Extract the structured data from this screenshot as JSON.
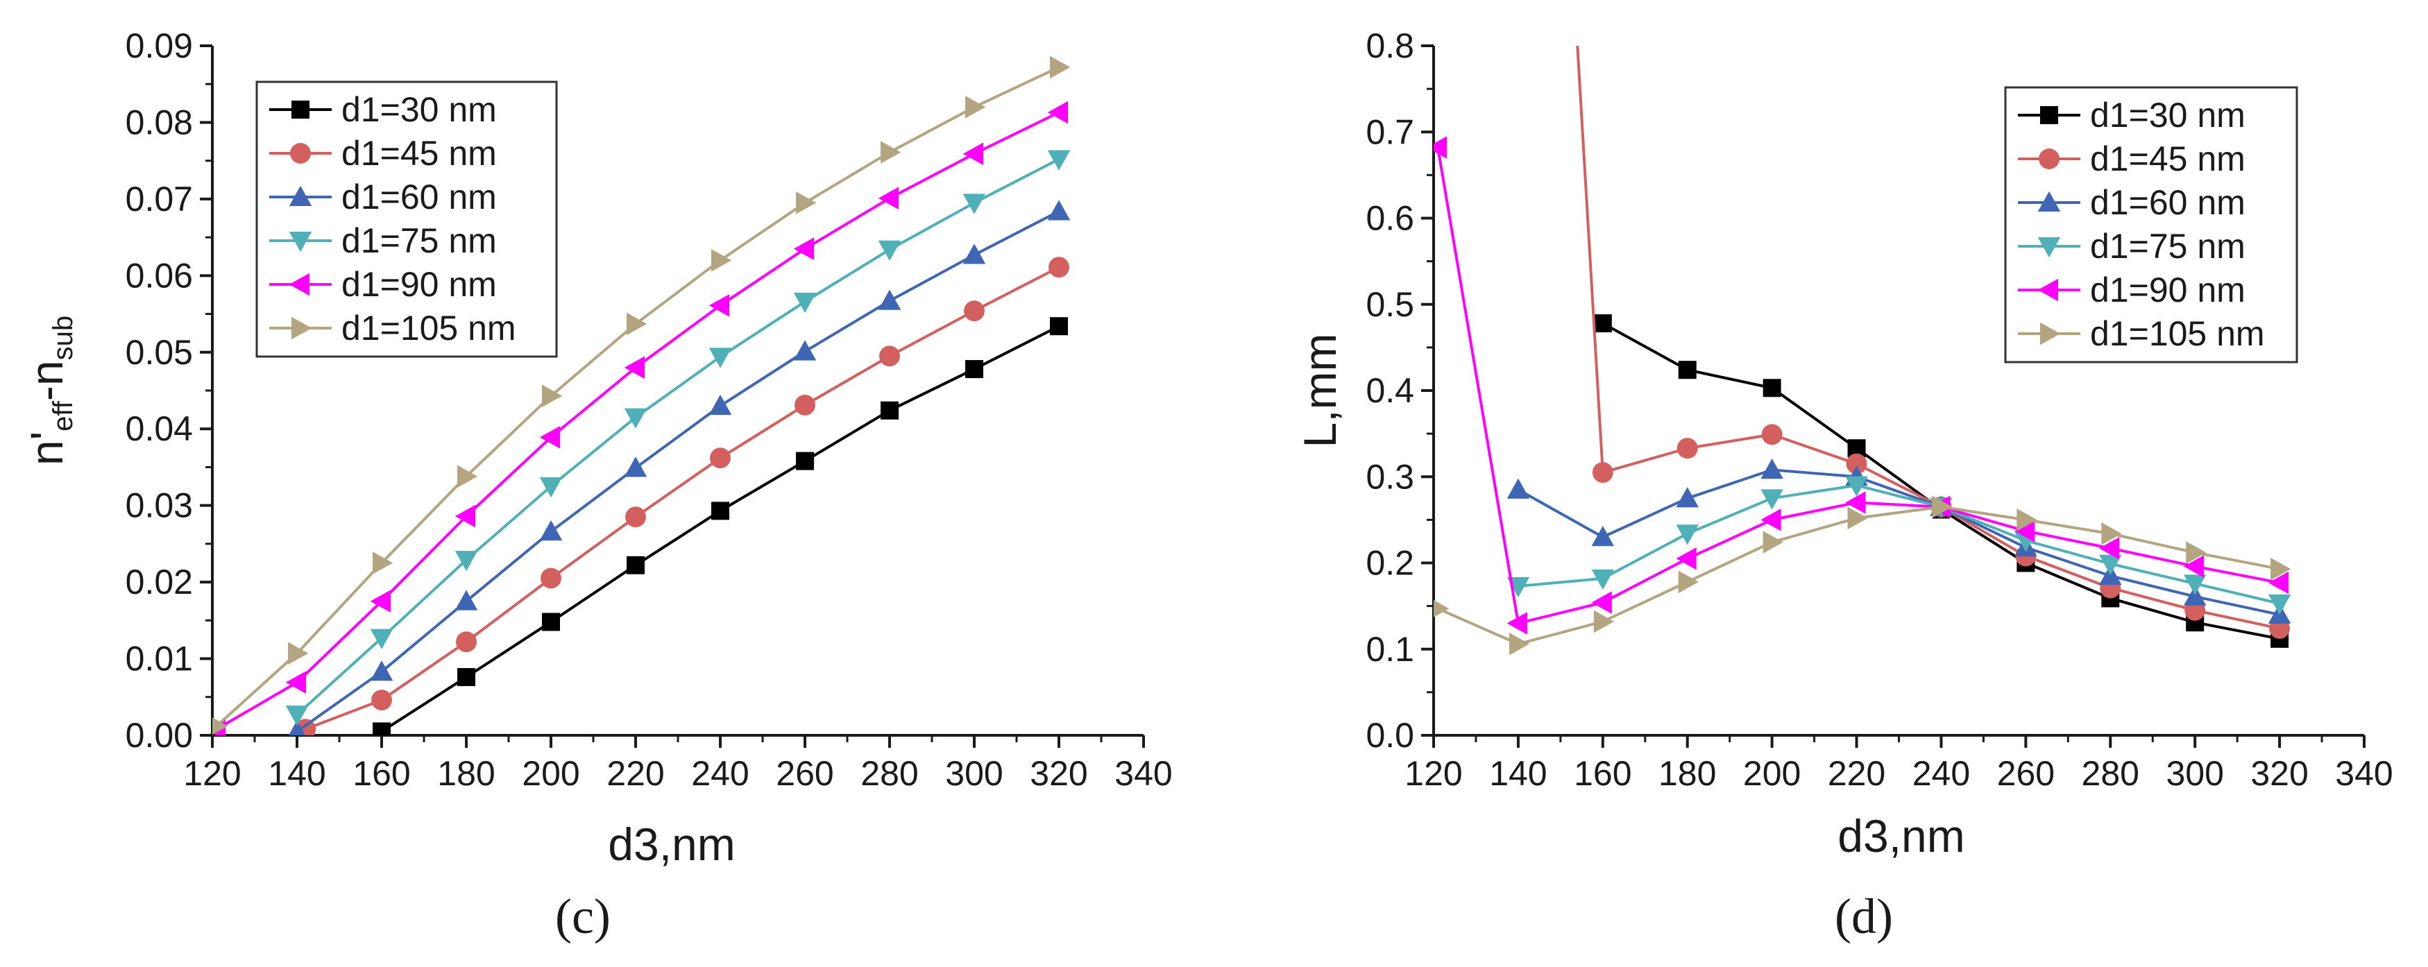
{
  "chart_data": [
    {
      "type": "line",
      "panel_label": "(c)",
      "ylabel_parts": [
        "n'",
        "eff",
        "-n",
        "sub"
      ],
      "xlabel": "d3,nm",
      "xlim": [
        120,
        340
      ],
      "ylim": [
        0,
        0.09
      ],
      "xticks": [
        "120",
        "140",
        "160",
        "180",
        "200",
        "220",
        "240",
        "260",
        "280",
        "300",
        "320",
        "340"
      ],
      "yticks": [
        "0.00",
        "0.01",
        "0.02",
        "0.03",
        "0.04",
        "0.05",
        "0.06",
        "0.07",
        "0.08",
        "0.09"
      ],
      "legend_position": "top-left",
      "series": [
        {
          "name": "d1=30 nm",
          "color": "#000000",
          "marker": "square",
          "x": [
            160,
            180,
            200,
            220,
            240,
            260,
            280,
            300,
            320
          ],
          "y": [
            0.0005,
            0.0076,
            0.0148,
            0.0222,
            0.0293,
            0.0358,
            0.0424,
            0.0478,
            0.0534
          ]
        },
        {
          "name": "d1=45 nm",
          "color": "#d45f5f",
          "marker": "circle",
          "x": [
            142,
            160,
            180,
            200,
            220,
            240,
            260,
            280,
            300,
            320
          ],
          "y": [
            0.0008,
            0.0046,
            0.0122,
            0.0205,
            0.0285,
            0.0362,
            0.0431,
            0.0495,
            0.0554,
            0.0611
          ]
        },
        {
          "name": "d1=60 nm",
          "color": "#3f66b5",
          "marker": "triangle-up",
          "x": [
            140,
            160,
            180,
            200,
            220,
            240,
            260,
            280,
            300,
            320
          ],
          "y": [
            0.0005,
            0.0083,
            0.0175,
            0.0266,
            0.0349,
            0.043,
            0.0501,
            0.0567,
            0.0627,
            0.0684
          ]
        },
        {
          "name": "d1=75 nm",
          "color": "#4fb0b8",
          "marker": "triangle-down",
          "x": [
            140,
            160,
            180,
            200,
            220,
            240,
            260,
            280,
            300,
            320
          ],
          "y": [
            0.0027,
            0.0127,
            0.0229,
            0.0325,
            0.0415,
            0.0494,
            0.0566,
            0.0634,
            0.0695,
            0.0752
          ]
        },
        {
          "name": "d1=90 nm",
          "color": "#ff00ff",
          "marker": "triangle-left",
          "x": [
            121,
            140,
            160,
            180,
            200,
            220,
            240,
            260,
            280,
            300,
            320
          ],
          "y": [
            0.0008,
            0.0069,
            0.0175,
            0.0286,
            0.0389,
            0.048,
            0.0561,
            0.0635,
            0.0701,
            0.0759,
            0.0813
          ]
        },
        {
          "name": "d1=105 nm",
          "color": "#b3a580",
          "marker": "triangle-right",
          "x": [
            121,
            140,
            160,
            180,
            200,
            220,
            240,
            260,
            280,
            300,
            320
          ],
          "y": [
            0.0012,
            0.0107,
            0.0225,
            0.0338,
            0.0443,
            0.0537,
            0.062,
            0.0695,
            0.0761,
            0.082,
            0.0872
          ]
        }
      ]
    },
    {
      "type": "line",
      "panel_label": "(d)",
      "ylabel": "L,mm",
      "xlabel": "d3,nm",
      "xlim": [
        120,
        340
      ],
      "ylim": [
        0,
        0.8
      ],
      "xticks": [
        "120",
        "140",
        "160",
        "180",
        "200",
        "220",
        "240",
        "260",
        "280",
        "300",
        "320",
        "340"
      ],
      "yticks": [
        "0.0",
        "0.1",
        "0.2",
        "0.3",
        "0.4",
        "0.5",
        "0.6",
        "0.7",
        "0.8"
      ],
      "legend_position": "top-right",
      "series": [
        {
          "name": "d1=30 nm",
          "color": "#000000",
          "marker": "square",
          "x": [
            160,
            180,
            200,
            220,
            240,
            260,
            280,
            300,
            320
          ],
          "y": [
            0.478,
            0.424,
            0.403,
            0.333,
            0.262,
            0.2,
            0.159,
            0.131,
            0.112
          ]
        },
        {
          "name": "d1=45 nm",
          "color": "#d45f5f",
          "marker": "circle",
          "x": [
            154,
            160,
            180,
            200,
            220,
            240,
            260,
            280,
            300,
            320
          ],
          "y": [
            0.8,
            0.305,
            0.333,
            0.349,
            0.315,
            0.265,
            0.208,
            0.171,
            0.145,
            0.124
          ],
          "unmarked_points": [
            0
          ]
        },
        {
          "name": "d1=60 nm",
          "color": "#3f66b5",
          "marker": "triangle-up",
          "x": [
            140,
            160,
            180,
            200,
            220,
            240,
            260,
            280,
            300,
            320
          ],
          "y": [
            0.285,
            0.23,
            0.275,
            0.308,
            0.3,
            0.265,
            0.218,
            0.185,
            0.161,
            0.14
          ]
        },
        {
          "name": "d1=75 nm",
          "color": "#4fb0b8",
          "marker": "triangle-down",
          "x": [
            140,
            160,
            180,
            200,
            220,
            240,
            260,
            280,
            300,
            320
          ],
          "y": [
            0.173,
            0.182,
            0.234,
            0.275,
            0.29,
            0.265,
            0.226,
            0.199,
            0.176,
            0.153
          ]
        },
        {
          "name": "d1=90 nm",
          "color": "#ff00ff",
          "marker": "triangle-left",
          "x": [
            121,
            140,
            160,
            180,
            200,
            220,
            240,
            260,
            280,
            300,
            320
          ],
          "y": [
            0.682,
            0.13,
            0.154,
            0.205,
            0.25,
            0.27,
            0.265,
            0.237,
            0.217,
            0.196,
            0.177
          ]
        },
        {
          "name": "d1=105 nm",
          "color": "#b3a580",
          "marker": "triangle-right",
          "x": [
            121,
            140,
            160,
            180,
            200,
            220,
            240,
            260,
            280,
            300,
            320
          ],
          "y": [
            0.147,
            0.106,
            0.132,
            0.178,
            0.224,
            0.252,
            0.265,
            0.25,
            0.234,
            0.212,
            0.193
          ]
        }
      ]
    }
  ]
}
